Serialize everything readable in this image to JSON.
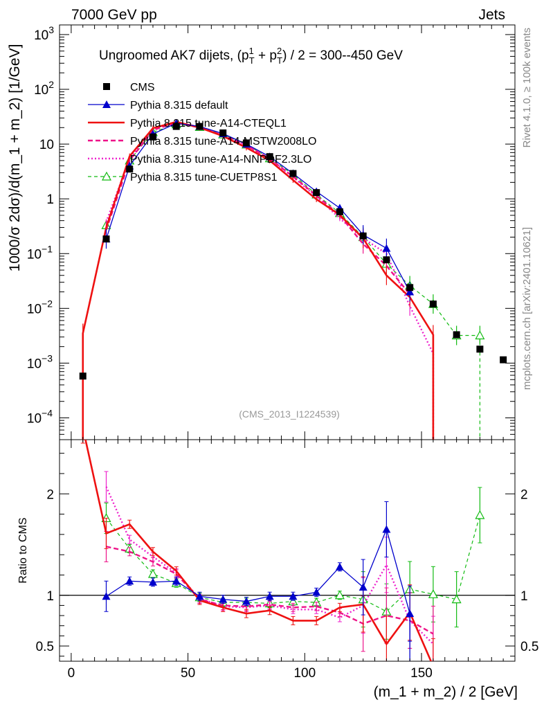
{
  "header": {
    "left": "7000 GeV pp",
    "right": "Jets"
  },
  "side_labels": {
    "rivet": "Rivet 4.1.0, ≥ 100k events",
    "source": "mcplots.cern.ch [arXiv:2401.10621]"
  },
  "colors": {
    "cms": "#000000",
    "default": "#0000cc",
    "cteql1": "#ee1111",
    "mstw": "#ee1188",
    "nnpdf": "#ee22cc",
    "cuetp8s1": "#11bb11",
    "ref_line": "#000000"
  },
  "chart_data": {
    "type": "line",
    "title_main": "Ungroomed AK7 dijets, (p",
    "title_tail": " + p",
    "title_end": ") / 2 = 300--450 GeV",
    "title_sub1": "T",
    "title_sup1": "1",
    "title_sub2": "T",
    "title_sup2": "2",
    "analysis_id": "(CMS_2013_I1224539)",
    "ylabel": "1000/σ  2dσ)/d(m_1 + m_2) [1/GeV]",
    "xlabel": "(m_1 + m_2) / 2 [GeV]",
    "ratio_ylabel": "Ratio to CMS",
    "x_range": [
      -5,
      190
    ],
    "y_range_log": [
      4e-05,
      1500
    ],
    "ratio_range": [
      0.35,
      2.5
    ],
    "x_ticks": [
      "0",
      "50",
      "100",
      "150"
    ],
    "x_tick_values": [
      0,
      50,
      100,
      150
    ],
    "y_ticks": [
      {
        "base": "10",
        "exp": "3",
        "value": 1000
      },
      {
        "base": "10",
        "exp": "2",
        "value": 100
      },
      {
        "base": "10",
        "exp": "",
        "value": 10
      },
      {
        "base": "1",
        "exp": "",
        "value": 1
      },
      {
        "base": "10",
        "exp": "−1",
        "value": 0.1
      },
      {
        "base": "10",
        "exp": "−2",
        "value": 0.01
      },
      {
        "base": "10",
        "exp": "−3",
        "value": 0.001
      },
      {
        "base": "10",
        "exp": "−4",
        "value": 0.0001
      }
    ],
    "ratio_ticks": [
      "0.5",
      "1",
      "2"
    ],
    "ratio_tick_values": [
      0.5,
      1,
      2
    ],
    "x": [
      5,
      15,
      25,
      35,
      45,
      55,
      65,
      75,
      85,
      95,
      105,
      115,
      125,
      135,
      145,
      155,
      165,
      175,
      185
    ],
    "series": [
      {
        "name": "CMS",
        "key": "cms",
        "style": "data",
        "values": [
          0.00058,
          0.185,
          3.5,
          13.5,
          21,
          21,
          16,
          10.5,
          5.9,
          2.9,
          1.3,
          0.58,
          0.21,
          0.077,
          0.024,
          0.012,
          0.0033,
          0.0018,
          0.00115
        ]
      },
      {
        "name": "Pythia 8.315 default",
        "key": "default",
        "style": "solid",
        "marker": "triangle-filled",
        "values": [
          null,
          0.185,
          4.0,
          15.3,
          24,
          21,
          15.5,
          10,
          5.9,
          2.9,
          1.36,
          0.68,
          0.22,
          0.125,
          0.02,
          null,
          null,
          null,
          null
        ],
        "ratio": [
          null,
          0.99,
          1.14,
          1.13,
          1.14,
          0.99,
          0.96,
          0.94,
          0.99,
          0.99,
          1.03,
          1.28,
          1.08,
          1.65,
          0.82,
          null,
          null,
          null,
          null
        ]
      },
      {
        "name": "Pythia 8.315 tune-A14-CTEQL1",
        "key": "cteql1",
        "style": "solid-thick",
        "marker": "none",
        "values": [
          0.0035,
          0.3,
          6.0,
          19.5,
          25.5,
          20,
          14,
          8.6,
          5.0,
          2.2,
          0.98,
          0.51,
          0.19,
          0.04,
          0.016,
          0.0033,
          null,
          null,
          null
        ],
        "ratio": [
          2.65,
          1.61,
          1.7,
          1.43,
          1.24,
          0.95,
          0.88,
          0.82,
          0.85,
          0.75,
          0.75,
          0.88,
          0.91,
          0.52,
          0.83,
          0.3,
          null,
          null,
          null
        ]
      },
      {
        "name": "Pythia 8.315 tune-A14-MSTW2008LO",
        "key": "mstw",
        "style": "dashed",
        "marker": "none",
        "values": [
          null,
          0.27,
          5.0,
          18.0,
          24.5,
          20,
          14.5,
          9.5,
          5.4,
          2.55,
          1.15,
          0.5,
          0.15,
          0.06,
          0.018,
          null,
          null,
          null,
          null
        ],
        "ratio": [
          null,
          1.48,
          1.43,
          1.33,
          1.21,
          0.96,
          0.9,
          0.89,
          0.91,
          0.88,
          0.89,
          0.83,
          0.72,
          0.8,
          0.75,
          0.62,
          null,
          null,
          null
        ]
      },
      {
        "name": "Pythia 8.315 tune-A14-NNPDF2.3LO",
        "key": "nnpdf",
        "style": "dotted",
        "marker": "none",
        "values": [
          null,
          0.38,
          5.4,
          18.8,
          25,
          20.5,
          14.3,
          9.4,
          5.3,
          2.5,
          1.1,
          0.44,
          0.19,
          0.1,
          0.011,
          0.0015,
          null,
          null,
          null
        ],
        "ratio": [
          null,
          2.07,
          1.55,
          1.38,
          1.22,
          0.97,
          0.89,
          0.88,
          0.9,
          0.86,
          0.86,
          0.78,
          0.9,
          1.3,
          0.75,
          0.52,
          null,
          null,
          null
        ]
      },
      {
        "name": "Pythia 8.315 tune-CUETP8S1",
        "key": "cuetp8s1",
        "style": "dashed-thin",
        "marker": "triangle-open",
        "values": [
          null,
          0.33,
          5.0,
          16.5,
          23,
          20.5,
          15,
          9.8,
          5.5,
          2.8,
          1.2,
          0.55,
          0.2,
          0.065,
          0.026,
          0.012,
          0.0032,
          0.0032,
          null
        ],
        "ratio": [
          null,
          1.76,
          1.46,
          1.21,
          1.12,
          0.98,
          0.93,
          0.93,
          0.92,
          0.94,
          0.93,
          1.0,
          0.96,
          0.84,
          1.06,
          1.01,
          0.96,
          1.79,
          null
        ]
      }
    ]
  }
}
